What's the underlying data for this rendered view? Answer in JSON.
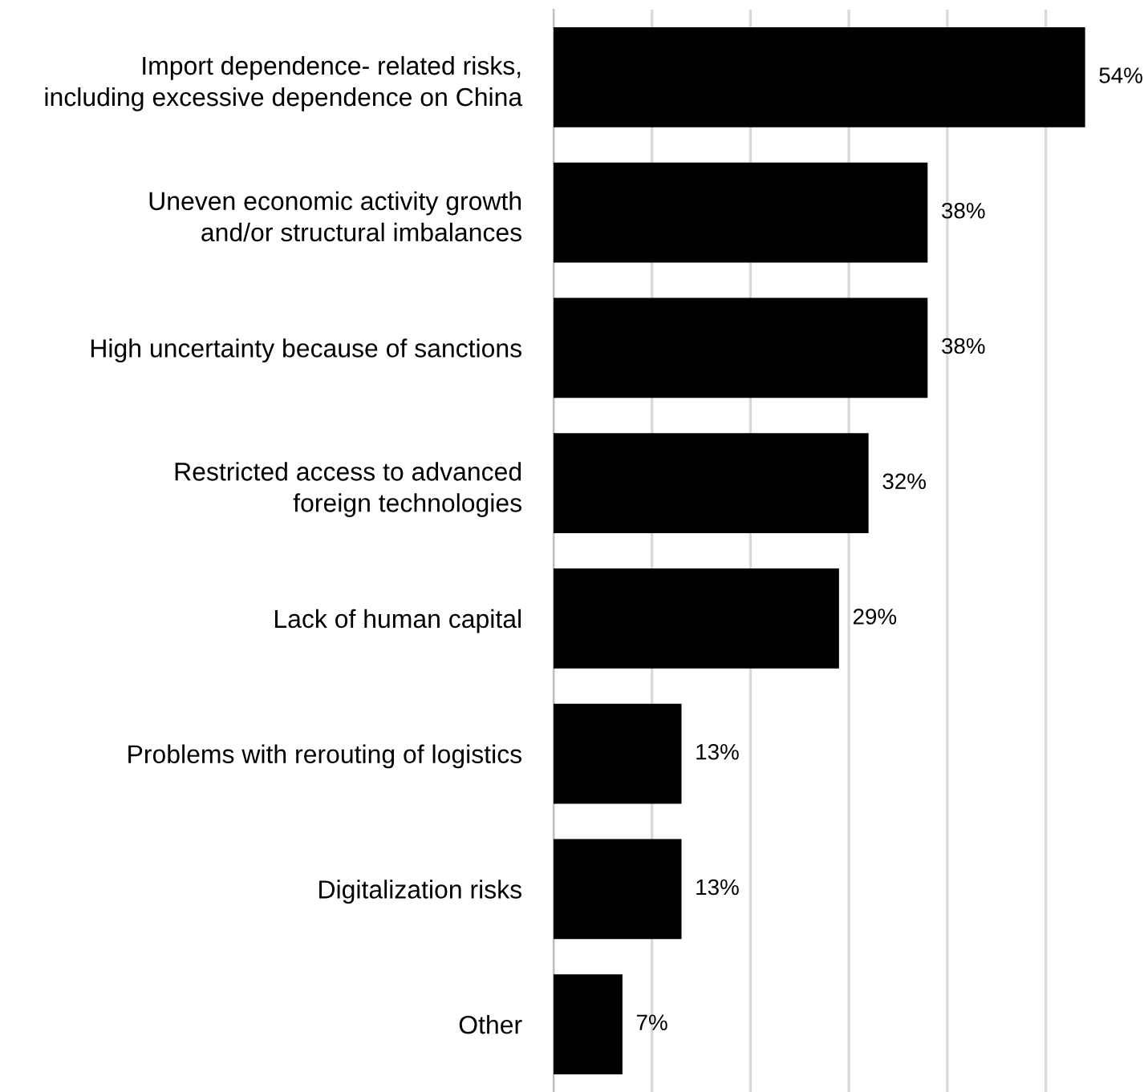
{
  "chart_data": {
    "type": "bar",
    "orientation": "horizontal",
    "categories": [
      "Import dependence- related risks,\nincluding excessive dependence on China",
      "Uneven economic activity growth\nand/or structural imbalances",
      "High uncertainty because of sanctions",
      "Restricted access to advanced\nforeign technologies",
      "Lack of human capital",
      "Problems with rerouting of logistics",
      "Digitalization risks",
      "Other"
    ],
    "values": [
      54,
      38,
      38,
      32,
      29,
      13,
      13,
      7
    ],
    "value_labels": [
      "54%",
      "38%",
      "38%",
      "32%",
      "29%",
      "13%",
      "13%",
      "7%"
    ],
    "color": "#000000",
    "tick_labels": "y",
    "grid": "x"
  }
}
